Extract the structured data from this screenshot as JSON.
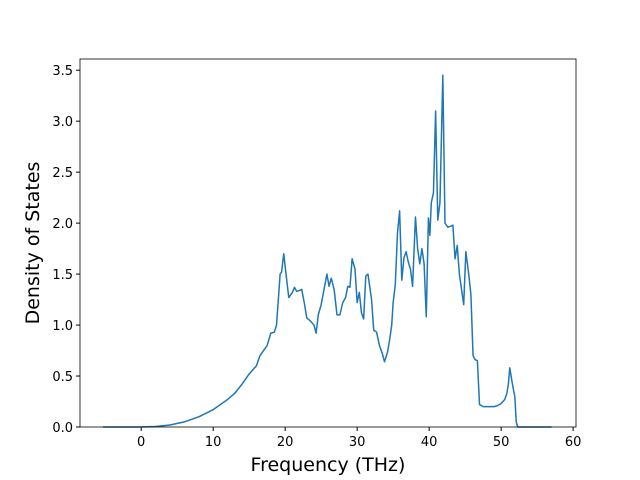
{
  "chart_data": {
    "type": "line",
    "xlabel": "Frequency (THz)",
    "ylabel": "Density of States",
    "color": "#1f77b4",
    "x": [
      -5.3,
      0,
      2,
      4,
      6,
      8,
      10,
      11,
      12,
      13,
      14,
      15,
      16,
      16.5,
      17,
      17.5,
      18,
      18.5,
      18.8,
      19,
      19.3,
      19.5,
      19.8,
      20.2,
      20.5,
      21,
      21.3,
      21.6,
      22,
      22.3,
      22.7,
      23,
      23.5,
      24,
      24.3,
      24.6,
      25,
      25.4,
      25.8,
      26.1,
      26.4,
      26.8,
      27.2,
      27.6,
      28,
      28.4,
      28.7,
      29,
      29.3,
      29.7,
      30,
      30.3,
      30.6,
      30.9,
      31.2,
      31.5,
      32,
      32.3,
      32.7,
      33.1,
      33.5,
      33.8,
      34.2,
      34.5,
      34.8,
      35,
      35.3,
      35.6,
      35.9,
      36.2,
      36.5,
      36.8,
      37.1,
      37.4,
      37.7,
      38.1,
      38.4,
      38.7,
      39,
      39.3,
      39.6,
      39.9,
      40.1,
      40.3,
      40.6,
      40.9,
      41.2,
      41.5,
      41.9,
      42.2,
      42.6,
      43,
      43.3,
      43.6,
      43.9,
      44.2,
      44.5,
      44.8,
      45.1,
      45.5,
      45.8,
      46.1,
      46.4,
      46.7,
      47,
      47.5,
      48,
      49,
      49.5,
      50,
      50.5,
      50.8,
      51,
      51.2,
      51.5,
      51.7,
      51.9,
      52.1,
      52.3,
      57
    ],
    "values": [
      0,
      0,
      0.005,
      0.02,
      0.05,
      0.1,
      0.17,
      0.22,
      0.27,
      0.33,
      0.42,
      0.52,
      0.6,
      0.7,
      0.75,
      0.8,
      0.92,
      0.93,
      1.0,
      1.2,
      1.5,
      1.52,
      1.7,
      1.45,
      1.27,
      1.32,
      1.37,
      1.33,
      1.34,
      1.35,
      1.2,
      1.07,
      1.04,
      1.0,
      0.92,
      1.1,
      1.2,
      1.35,
      1.5,
      1.38,
      1.46,
      1.35,
      1.1,
      1.1,
      1.22,
      1.27,
      1.38,
      1.37,
      1.65,
      1.55,
      1.22,
      1.32,
      1.12,
      1.06,
      1.48,
      1.5,
      1.25,
      0.95,
      0.93,
      0.8,
      0.72,
      0.64,
      0.73,
      0.85,
      1.0,
      1.22,
      1.4,
      1.9,
      2.12,
      1.44,
      1.66,
      1.72,
      1.62,
      1.55,
      1.38,
      2.06,
      1.75,
      1.6,
      1.75,
      1.6,
      1.08,
      2.05,
      1.88,
      2.2,
      2.3,
      3.1,
      2.03,
      2.2,
      3.45,
      2.0,
      1.96,
      1.97,
      1.98,
      1.65,
      1.78,
      1.5,
      1.35,
      1.2,
      1.72,
      1.5,
      1.3,
      0.7,
      0.66,
      0.65,
      0.22,
      0.2,
      0.2,
      0.2,
      0.21,
      0.23,
      0.27,
      0.33,
      0.42,
      0.58,
      0.45,
      0.37,
      0.3,
      0.05,
      0,
      0
    ],
    "xlim": [
      -8.5,
      60.4
    ],
    "ylim": [
      0,
      3.61
    ],
    "xticks": [
      0,
      10,
      20,
      30,
      40,
      50,
      60
    ],
    "yticks": [
      {
        "value": 0,
        "label": "0.0"
      },
      {
        "value": 0.5,
        "label": "0.5"
      },
      {
        "value": 1,
        "label": "1.0"
      },
      {
        "value": 1.5,
        "label": "1.5"
      },
      {
        "value": 2,
        "label": "2.0"
      },
      {
        "value": 2.5,
        "label": "2.5"
      },
      {
        "value": 3,
        "label": "3.0"
      },
      {
        "value": 3.5,
        "label": "3.5"
      }
    ]
  }
}
